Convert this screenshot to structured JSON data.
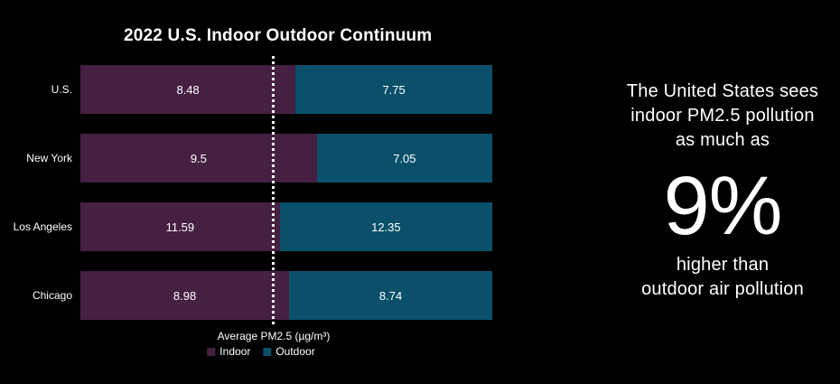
{
  "chart_data": {
    "type": "bar",
    "orientation": "horizontal",
    "stacked": true,
    "normalized_to_100_percent": true,
    "title": "2022 U.S. Indoor Outdoor Continuum",
    "xlabel": "Average PM2.5 (µg/m³)",
    "categories": [
      "U.S.",
      "New York",
      "Los Angeles",
      "Chicago"
    ],
    "series": [
      {
        "name": "Indoor",
        "color": "#462042",
        "values": [
          8.48,
          9.5,
          11.59,
          8.98
        ]
      },
      {
        "name": "Outdoor",
        "color": "#0a506a",
        "values": [
          7.75,
          7.05,
          12.35,
          8.74
        ]
      }
    ],
    "data_labels_shown": true,
    "legend_position": "bottom",
    "grid": false,
    "reference_line": {
      "orientation": "vertical",
      "style": "dotted",
      "color": "#ffffff"
    }
  },
  "aside": {
    "intro_lines": [
      "The United States sees",
      "indoor PM2.5 pollution",
      "as much as"
    ],
    "stat": "9%",
    "outro_lines": [
      "higher than",
      "outdoor air pollution"
    ]
  },
  "colors": {
    "background": "#000000",
    "text": "#ffffff",
    "indoor": "#462042",
    "outdoor": "#0a506a"
  }
}
